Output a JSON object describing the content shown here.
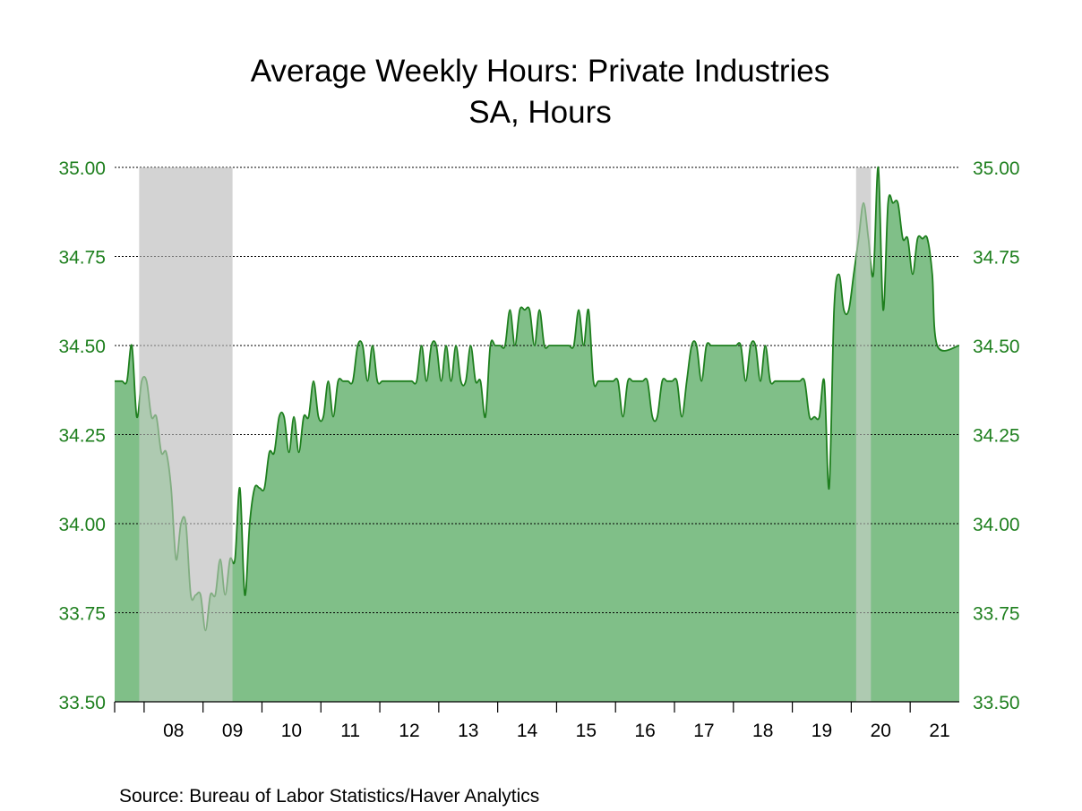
{
  "chart_data": {
    "type": "area",
    "title": "Average Weekly Hours: Private Industries",
    "subtitle": "SA, Hours",
    "source": "Source:  Bureau of Labor Statistics/Haver Analytics",
    "y_ticks": [
      "33.50",
      "33.75",
      "34.00",
      "34.25",
      "34.50",
      "34.75",
      "35.00"
    ],
    "ylim": [
      33.5,
      35.0
    ],
    "x_ticks": [
      "08",
      "09",
      "10",
      "11",
      "12",
      "13",
      "14",
      "15",
      "16",
      "17",
      "18",
      "19",
      "20",
      "21"
    ],
    "x_range": [
      "2007-07",
      "2021-10"
    ],
    "grid": "horizontal dotted",
    "y_axis_both_sides": true,
    "recessions": [
      {
        "start": "2007-12",
        "end": "2009-06"
      },
      {
        "start": "2020-02",
        "end": "2020-04"
      }
    ],
    "colors": {
      "line": "#1e7f1e",
      "fill": "#80bf88",
      "recession": "#d3d3d3",
      "axis_labels": "#1e7f1e"
    },
    "series": [
      {
        "start": "2007-07",
        "values": [
          34.4,
          34.4,
          34.4,
          34.5,
          34.3,
          34.4,
          34.4,
          34.3,
          34.3,
          34.2,
          34.2,
          34.1,
          33.9,
          34.0,
          34.0,
          33.8,
          33.8,
          33.8,
          33.7,
          33.8,
          33.8,
          33.9,
          33.8,
          33.9,
          33.9,
          34.1,
          33.8,
          34.0,
          34.1,
          34.1,
          34.1,
          34.2,
          34.2,
          34.3,
          34.3,
          34.2,
          34.3,
          34.2,
          34.3,
          34.3,
          34.4,
          34.3,
          34.3,
          34.4,
          34.3,
          34.4,
          34.4,
          34.4,
          34.4,
          34.5,
          34.5,
          34.4,
          34.5,
          34.4,
          34.4,
          34.4,
          34.4,
          34.4,
          34.4,
          34.4,
          34.4,
          34.4,
          34.5,
          34.4,
          34.5,
          34.5,
          34.4,
          34.5,
          34.4,
          34.5,
          34.4,
          34.4,
          34.5,
          34.4,
          34.4,
          34.3,
          34.5,
          34.5,
          34.5,
          34.5,
          34.6,
          34.5,
          34.6,
          34.6,
          34.6,
          34.5,
          34.6,
          34.5,
          34.5,
          34.5,
          34.5,
          34.5,
          34.5,
          34.5,
          34.6,
          34.5,
          34.6,
          34.4,
          34.4,
          34.4,
          34.4,
          34.4,
          34.4,
          34.3,
          34.4,
          34.4,
          34.4,
          34.4,
          34.4,
          34.3,
          34.3,
          34.4,
          34.4,
          34.4,
          34.4,
          34.3,
          34.4,
          34.5,
          34.5,
          34.4,
          34.5,
          34.5,
          34.5,
          34.5,
          34.5,
          34.5,
          34.5,
          34.5,
          34.4,
          34.5,
          34.5,
          34.4,
          34.5,
          34.4,
          34.4,
          34.4,
          34.4,
          34.4,
          34.4,
          34.4,
          34.4,
          34.3,
          34.3,
          34.3,
          34.4,
          34.1,
          34.6,
          34.7,
          34.6,
          34.6,
          34.7,
          34.8,
          34.9,
          34.8,
          34.7,
          35.0,
          34.6,
          34.9,
          34.9,
          34.9,
          34.8,
          34.8,
          34.7,
          34.8,
          34.8,
          34.8,
          34.7,
          34.5
        ]
      }
    ]
  }
}
